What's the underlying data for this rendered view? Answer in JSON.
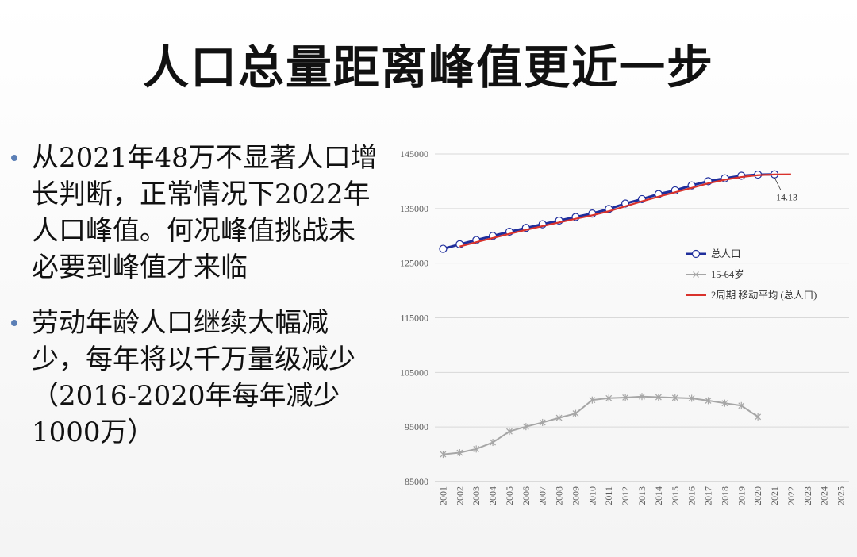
{
  "slide": {
    "title": "人口总量距离峰值更近一步",
    "bullets": [
      "从2021年48万不显著人口增长判断，正常情况下2022年人口峰值。何况峰值挑战未必要到峰值才来临",
      "劳动年龄人口继续大幅减少，每年将以千万量级减少（2016-2020年每年减少1000万）"
    ]
  },
  "chart_data": {
    "type": "line",
    "categories": [
      "2001",
      "2002",
      "2003",
      "2004",
      "2005",
      "2006",
      "2007",
      "2008",
      "2009",
      "2010",
      "2011",
      "2012",
      "2013",
      "2014",
      "2015",
      "2016",
      "2017",
      "2018",
      "2019",
      "2020",
      "2021",
      "2022",
      "2023",
      "2024",
      "2025"
    ],
    "ylim": [
      85000,
      145000
    ],
    "yticks": [
      85000,
      95000,
      105000,
      115000,
      125000,
      135000,
      145000
    ],
    "grid": true,
    "legend_position": "right",
    "series": [
      {
        "name": "总人口",
        "color": "#1f2e9c",
        "marker": "circle",
        "values": [
          127627,
          128453,
          129227,
          129988,
          130756,
          131448,
          132129,
          132802,
          133450,
          134091,
          134916,
          135922,
          136726,
          137646,
          138326,
          139232,
          140011,
          140541,
          141008,
          141212,
          141260,
          null,
          null,
          null,
          null
        ]
      },
      {
        "name": "15-64岁",
        "color": "#a6a6a6",
        "marker": "cross",
        "values": [
          90000,
          90300,
          90976,
          92184,
          94197,
          95068,
          95833,
          96680,
          97484,
          99938,
          100283,
          100403,
          100582,
          100469,
          100361,
          100260,
          99829,
          99357,
          98910,
          96871,
          null,
          null,
          null,
          null,
          null
        ]
      },
      {
        "name": "2周期 移动平均 (总人口)",
        "color": "#d9322c",
        "marker": "none",
        "values": [
          null,
          128040,
          128840,
          129608,
          130372,
          131102,
          131788,
          132466,
          133126,
          133770,
          134504,
          135419,
          136324,
          137186,
          137986,
          138779,
          139622,
          140276,
          140775,
          141110,
          141236,
          141260,
          null,
          null,
          null
        ]
      }
    ],
    "annotations": [
      {
        "text": "14.13",
        "x": "2021"
      }
    ]
  }
}
